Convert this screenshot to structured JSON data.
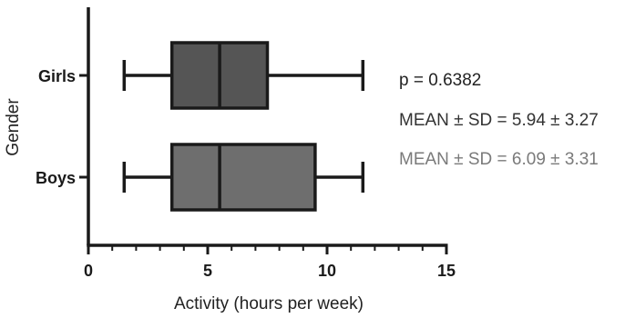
{
  "chart_data": {
    "type": "boxplot",
    "orientation": "horizontal",
    "title": "",
    "xlabel": "Activity (hours per week)",
    "ylabel": "Gender",
    "xlim": [
      0,
      15
    ],
    "x_ticks": [
      "0",
      "5",
      "10",
      "15"
    ],
    "grid": false,
    "categories": [
      "Girls",
      "Boys"
    ],
    "boxes": [
      {
        "label": "Girls",
        "min": 1.5,
        "q1": 3.5,
        "median": 5.5,
        "q3": 7.5,
        "max": 11.5,
        "fill": "#555555"
      },
      {
        "label": "Boys",
        "min": 1.5,
        "q1": 3.5,
        "median": 5.5,
        "q3": 9.5,
        "max": 11.5,
        "fill": "#6e6e6e"
      }
    ],
    "annotations": {
      "p_value": "p = 0.6382",
      "girls_stats": "MEAN ± SD = 5.94 ± 3.27",
      "boys_stats": "MEAN ± SD = 6.09 ± 3.31"
    }
  }
}
